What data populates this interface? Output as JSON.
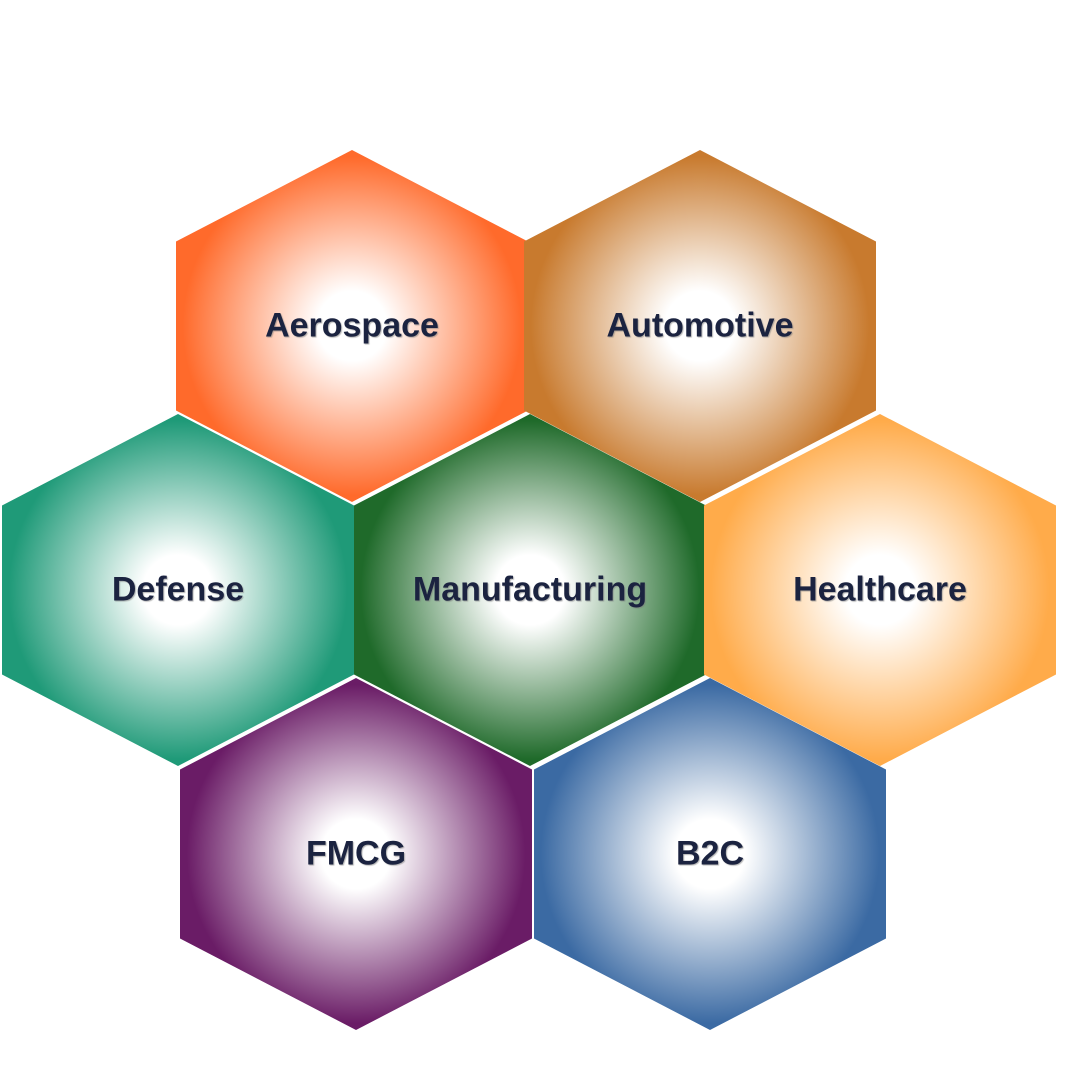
{
  "hexagons": [
    {
      "id": "aerospace",
      "label": "Aerospace",
      "color": "#ff6a2b"
    },
    {
      "id": "automotive",
      "label": "Automotive",
      "color": "#c87a2e"
    },
    {
      "id": "defense",
      "label": "Defense",
      "color": "#1f9a78"
    },
    {
      "id": "manufacturing",
      "label": "Manufacturing",
      "color": "#1f6a2a"
    },
    {
      "id": "healthcare",
      "label": "Healthcare",
      "color": "#ffab4a"
    },
    {
      "id": "fmcg",
      "label": "FMCG",
      "color": "#6a1c66"
    },
    {
      "id": "b2c",
      "label": "B2C",
      "color": "#3b6aa3"
    }
  ]
}
